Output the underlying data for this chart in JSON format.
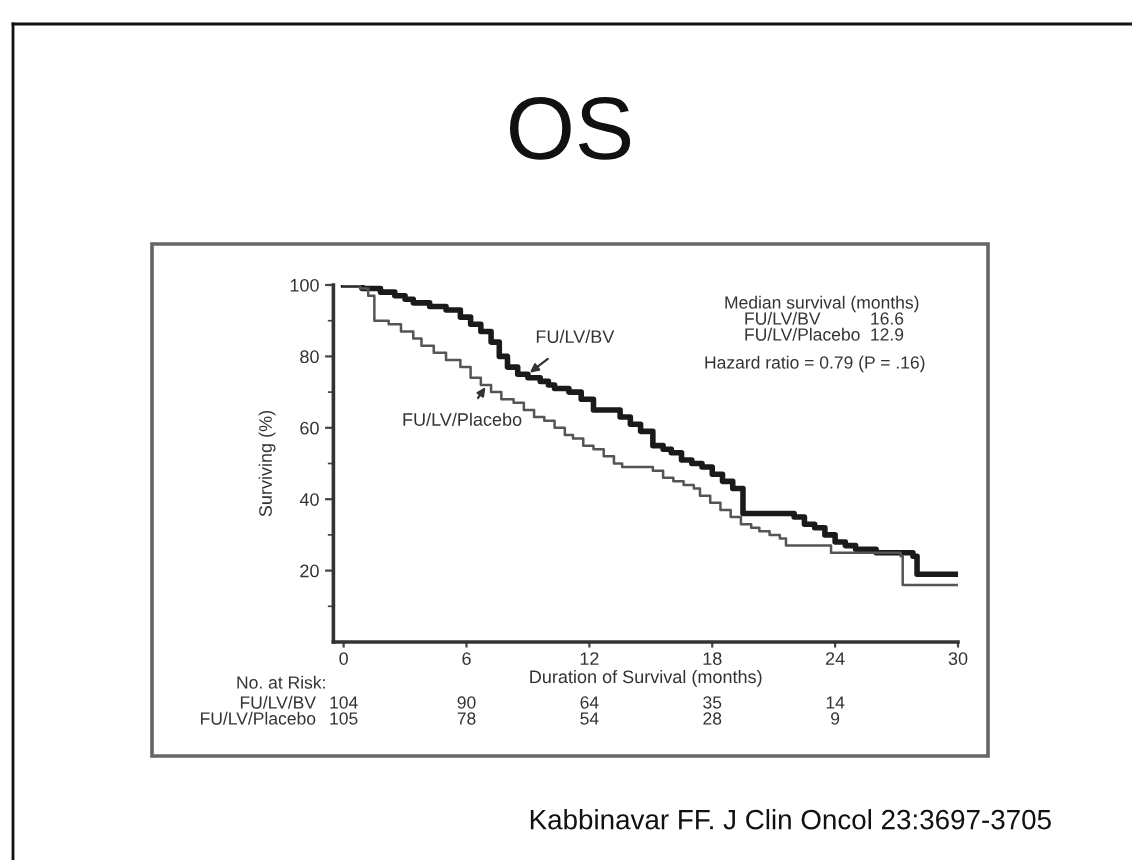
{
  "chart_data": {
    "type": "step",
    "title": "OS",
    "xlabel": "Duration of Survival (months)",
    "ylabel": "Surviving (%)",
    "series": [
      {
        "name": "FU/LV/BV",
        "color": "#1a1a1a",
        "x": [
          0,
          0.9,
          1.8,
          2.5,
          3.0,
          3.4,
          4.2,
          5.0,
          5.7,
          6.2,
          6.7,
          7.2,
          7.6,
          8.0,
          8.5,
          9.0,
          9.6,
          10.0,
          10.3,
          11.0,
          11.6,
          12.2,
          13.5,
          14.0,
          14.5,
          15.1,
          15.6,
          16.0,
          16.5,
          17.0,
          17.5,
          18.0,
          18.5,
          19.0,
          19.5,
          22.0,
          22.5,
          23.0,
          23.5,
          24.0,
          24.5,
          25.0,
          26.0,
          27.8,
          28.0,
          30
        ],
        "values": [
          100,
          99,
          98,
          97,
          96,
          95,
          94,
          93,
          91,
          89,
          87,
          84,
          80,
          77,
          75,
          74,
          73,
          72,
          71,
          70,
          68,
          65,
          63,
          61,
          59,
          55,
          54,
          53,
          51,
          50,
          49,
          47,
          45,
          43,
          36,
          35,
          33,
          32,
          30,
          28,
          27,
          26,
          25,
          24,
          19,
          19
        ]
      },
      {
        "name": "FU/LV/Placebo",
        "color": "#555555",
        "x": [
          0,
          0.8,
          1.2,
          1.5,
          2.2,
          2.8,
          3.4,
          3.8,
          4.4,
          5.0,
          5.7,
          6.2,
          6.7,
          7.2,
          7.7,
          8.3,
          8.8,
          9.3,
          9.8,
          10.3,
          10.8,
          11.2,
          11.7,
          12.2,
          12.7,
          13.2,
          13.6,
          15.1,
          15.6,
          16.1,
          16.6,
          17.1,
          17.4,
          17.9,
          18.4,
          18.9,
          19.4,
          19.9,
          20.3,
          20.8,
          21.3,
          21.6,
          23.8,
          27.2,
          27.3,
          30
        ],
        "values": [
          100,
          99,
          97,
          90,
          89,
          87,
          85,
          83,
          81,
          79,
          77,
          74,
          72,
          70,
          68,
          67,
          65,
          63,
          62,
          60,
          58,
          57,
          55,
          54,
          52,
          50,
          49,
          48,
          46,
          45,
          44,
          43,
          41,
          39,
          37,
          35,
          33,
          32,
          31,
          30,
          29,
          27,
          25,
          24,
          16,
          16
        ]
      }
    ],
    "xlim": [
      -0.5,
      30
    ],
    "ylim": [
      0,
      100
    ],
    "xticks": [
      0,
      6,
      12,
      18,
      24,
      30
    ],
    "yticks": [
      {
        "value": 10,
        "label": null
      },
      20,
      {
        "value": 30,
        "label": null
      },
      40,
      {
        "value": 50,
        "label": null
      },
      60,
      {
        "value": 70,
        "label": null
      },
      80,
      {
        "value": 90,
        "label": null
      },
      100
    ],
    "annotations": [
      "Median survival (months)",
      "FU/LV/BV",
      "16.6",
      "FU/LV/Placebo",
      "12.9",
      "Hazard ratio = 0.79 (P = .16)",
      "No. at Risk:",
      "FU/LV/BV",
      "104",
      "90",
      "64",
      "35",
      "14",
      "FU/LV/Placebo",
      "105",
      "78",
      "54",
      "28",
      "9",
      "Kabbinavar FF. J Clin Oncol 23:3697-3705"
    ],
    "grid": false,
    "line_style": "solid"
  }
}
